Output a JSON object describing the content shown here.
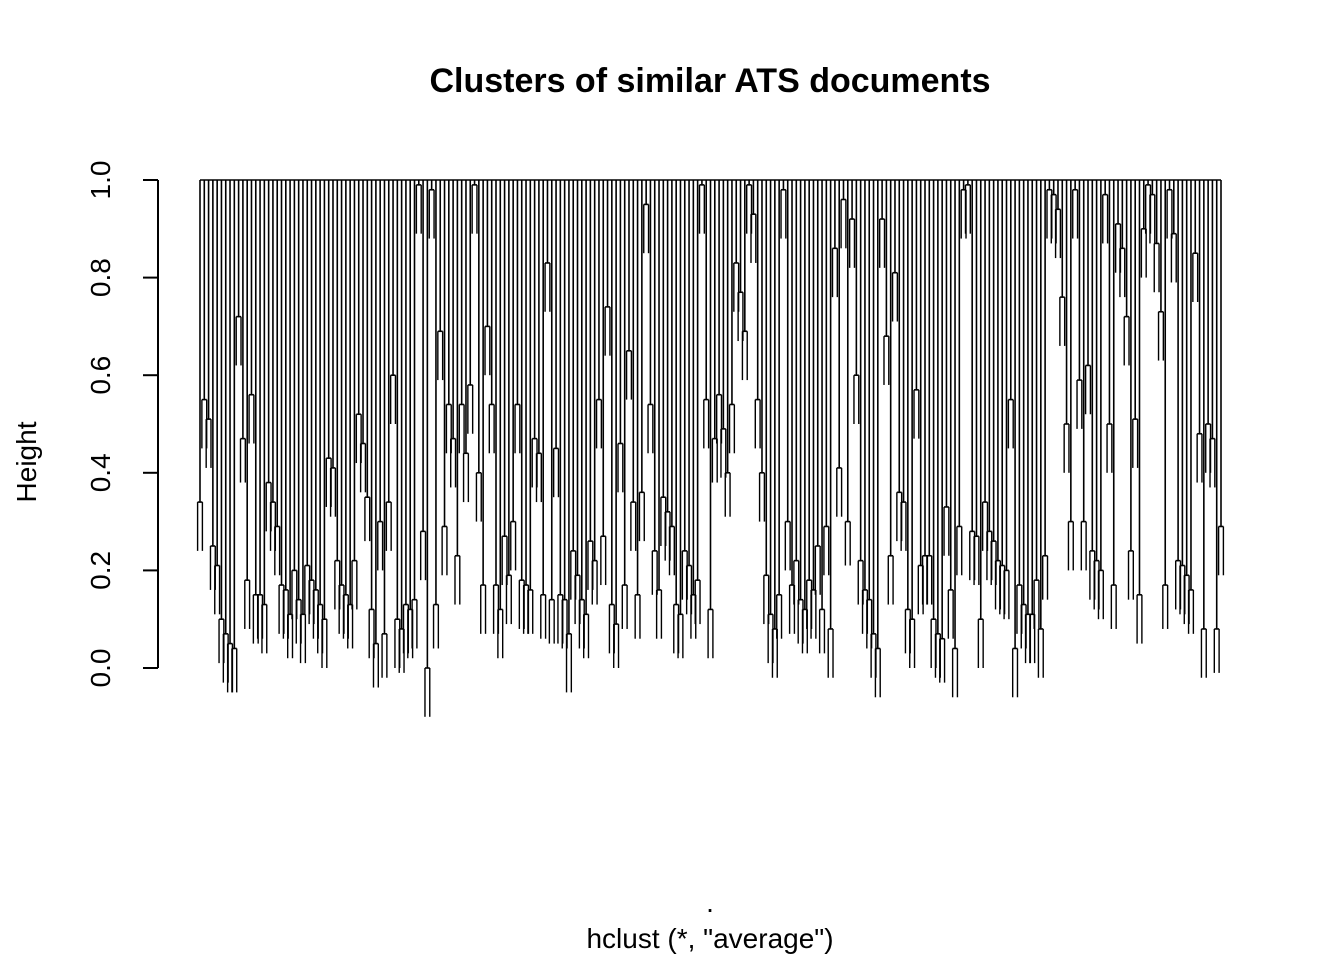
{
  "chart_data": {
    "type": "dendrogram",
    "title": "Clusters of similar ATS documents",
    "ylabel": "Height",
    "xlabel": ".",
    "sub": "hclust (*, \"average\")",
    "ylim": [
      0,
      1
    ],
    "yticks": [
      "0.0",
      "0.2",
      "0.4",
      "0.6",
      "0.8",
      "1.0"
    ],
    "n_leaves": 198,
    "clusters": [
      {
        "width": 5,
        "pairs": [
          [
            0.34,
            0.24
          ],
          [
            0.55,
            0.45
          ],
          [
            0.51,
            0.41
          ],
          [
            0.25,
            0.16
          ],
          [
            0.21,
            0.11
          ]
        ]
      },
      {
        "width": 4,
        "pairs": [
          [
            0.1,
            0.01
          ],
          [
            0.07,
            -0.03
          ],
          [
            0.05,
            -0.05
          ],
          [
            0.04,
            -0.05
          ]
        ]
      },
      {
        "width": 3,
        "pairs": [
          [
            0.72,
            0.62
          ],
          [
            0.47,
            0.38
          ],
          [
            0.18,
            0.08
          ]
        ]
      },
      {
        "width": 4,
        "pairs": [
          [
            0.56,
            0.46
          ],
          [
            0.15,
            0.05
          ],
          [
            0.15,
            0.06
          ],
          [
            0.13,
            0.03
          ]
        ]
      },
      {
        "width": 5,
        "pairs": [
          [
            0.38,
            0.28
          ],
          [
            0.34,
            0.24
          ],
          [
            0.29,
            0.19
          ],
          [
            0.17,
            0.07
          ],
          [
            0.16,
            0.06
          ]
        ]
      },
      {
        "width": 4,
        "pairs": [
          [
            0.11,
            0.02
          ],
          [
            0.2,
            0.1
          ],
          [
            0.14,
            0.05
          ],
          [
            0.11,
            0.01
          ]
        ]
      },
      {
        "width": 5,
        "pairs": [
          [
            0.21,
            0.11
          ],
          [
            0.18,
            0.09
          ],
          [
            0.16,
            0.06
          ],
          [
            0.13,
            0.03
          ],
          [
            0.1,
            0.0
          ]
        ]
      },
      {
        "width": 6,
        "pairs": [
          [
            0.43,
            0.33
          ],
          [
            0.41,
            0.31
          ],
          [
            0.22,
            0.12
          ],
          [
            0.17,
            0.07
          ],
          [
            0.15,
            0.06
          ],
          [
            0.13,
            0.04
          ]
        ]
      },
      {
        "width": 5,
        "pairs": [
          [
            0.22,
            0.12
          ],
          [
            0.52,
            0.42
          ],
          [
            0.46,
            0.36
          ],
          [
            0.35,
            0.26
          ],
          [
            0.12,
            0.02
          ]
        ]
      },
      {
        "width": 4,
        "pairs": [
          [
            0.05,
            -0.04
          ],
          [
            0.3,
            0.2
          ],
          [
            0.07,
            -0.02
          ],
          [
            0.34,
            0.24
          ]
        ]
      },
      {
        "width": 3,
        "pairs": [
          [
            0.6,
            0.5
          ],
          [
            0.1,
            0.0
          ],
          [
            0.08,
            -0.01
          ]
        ]
      },
      {
        "width": 6,
        "pairs": [
          [
            0.13,
            0.03
          ],
          [
            0.12,
            0.02
          ],
          [
            0.14,
            0.04
          ],
          [
            0.99,
            0.89
          ],
          [
            0.28,
            0.18
          ],
          [
            0.0,
            -0.1
          ]
        ]
      },
      {
        "width": 3,
        "pairs": [
          [
            0.98,
            0.88
          ],
          [
            0.13,
            0.04
          ],
          [
            0.69,
            0.59
          ]
        ]
      },
      {
        "width": 4,
        "pairs": [
          [
            0.29,
            0.19
          ],
          [
            0.54,
            0.44
          ],
          [
            0.47,
            0.37
          ],
          [
            0.23,
            0.13
          ]
        ]
      },
      {
        "width": 4,
        "pairs": [
          [
            0.54,
            0.44
          ],
          [
            0.44,
            0.34
          ],
          [
            0.58,
            0.48
          ],
          [
            0.99,
            0.89
          ]
        ]
      },
      {
        "width": 3,
        "pairs": [
          [
            0.4,
            0.3
          ],
          [
            0.17,
            0.07
          ],
          [
            0.7,
            0.6
          ]
        ]
      },
      {
        "width": 4,
        "pairs": [
          [
            0.54,
            0.44
          ],
          [
            0.17,
            0.07
          ],
          [
            0.12,
            0.02
          ],
          [
            0.27,
            0.17
          ]
        ]
      },
      {
        "width": 3,
        "pairs": [
          [
            0.19,
            0.09
          ],
          [
            0.3,
            0.2
          ],
          [
            0.54,
            0.44
          ]
        ]
      },
      {
        "width": 4,
        "pairs": [
          [
            0.18,
            0.08
          ],
          [
            0.17,
            0.07
          ],
          [
            0.16,
            0.07
          ],
          [
            0.47,
            0.37
          ]
        ]
      },
      {
        "width": 3,
        "pairs": [
          [
            0.44,
            0.34
          ],
          [
            0.15,
            0.06
          ],
          [
            0.83,
            0.73
          ]
        ]
      },
      {
        "width": 3,
        "pairs": [
          [
            0.14,
            0.05
          ],
          [
            0.45,
            0.35
          ],
          [
            0.15,
            0.05
          ]
        ]
      },
      {
        "width": 4,
        "pairs": [
          [
            0.14,
            0.04
          ],
          [
            0.07,
            -0.05
          ],
          [
            0.24,
            0.14
          ],
          [
            0.19,
            0.09
          ]
        ]
      },
      {
        "width": 4,
        "pairs": [
          [
            0.14,
            0.04
          ],
          [
            0.11,
            0.02
          ],
          [
            0.26,
            0.16
          ],
          [
            0.22,
            0.13
          ]
        ]
      },
      {
        "width": 4,
        "pairs": [
          [
            0.55,
            0.45
          ],
          [
            0.27,
            0.17
          ],
          [
            0.74,
            0.64
          ],
          [
            0.13,
            0.03
          ]
        ]
      },
      {
        "width": 3,
        "pairs": [
          [
            0.09,
            0.0
          ],
          [
            0.46,
            0.36
          ],
          [
            0.17,
            0.08
          ]
        ]
      },
      {
        "width": 4,
        "pairs": [
          [
            0.65,
            0.55
          ],
          [
            0.34,
            0.24
          ],
          [
            0.15,
            0.06
          ],
          [
            0.36,
            0.26
          ]
        ]
      },
      {
        "width": 3,
        "pairs": [
          [
            0.95,
            0.85
          ],
          [
            0.54,
            0.44
          ],
          [
            0.24,
            0.15
          ]
        ]
      },
      {
        "width": 4,
        "pairs": [
          [
            0.16,
            0.06
          ],
          [
            0.35,
            0.25
          ],
          [
            0.32,
            0.22
          ],
          [
            0.29,
            0.19
          ]
        ]
      },
      {
        "width": 4,
        "pairs": [
          [
            0.13,
            0.03
          ],
          [
            0.11,
            0.02
          ],
          [
            0.24,
            0.14
          ],
          [
            0.21,
            0.11
          ]
        ]
      },
      {
        "width": 4,
        "pairs": [
          [
            0.15,
            0.06
          ],
          [
            0.18,
            0.09
          ],
          [
            0.99,
            0.89
          ],
          [
            0.55,
            0.45
          ]
        ]
      },
      {
        "width": 3,
        "pairs": [
          [
            0.12,
            0.02
          ],
          [
            0.47,
            0.38
          ],
          [
            0.56,
            0.46
          ]
        ]
      },
      {
        "width": 3,
        "pairs": [
          [
            0.49,
            0.39
          ],
          [
            0.4,
            0.31
          ],
          [
            0.54,
            0.44
          ]
        ]
      },
      {
        "width": 4,
        "pairs": [
          [
            0.83,
            0.73
          ],
          [
            0.77,
            0.67
          ],
          [
            0.69,
            0.59
          ],
          [
            0.99,
            0.89
          ]
        ]
      },
      {
        "width": 3,
        "pairs": [
          [
            0.93,
            0.83
          ],
          [
            0.55,
            0.45
          ],
          [
            0.4,
            0.3
          ]
        ]
      },
      {
        "width": 3,
        "pairs": [
          [
            0.19,
            0.09
          ],
          [
            0.11,
            0.01
          ],
          [
            0.08,
            -0.02
          ]
        ]
      },
      {
        "width": 3,
        "pairs": [
          [
            0.15,
            0.06
          ],
          [
            0.98,
            0.88
          ],
          [
            0.3,
            0.2
          ]
        ]
      },
      {
        "width": 4,
        "pairs": [
          [
            0.17,
            0.07
          ],
          [
            0.22,
            0.13
          ],
          [
            0.14,
            0.05
          ],
          [
            0.12,
            0.03
          ]
        ]
      },
      {
        "width": 4,
        "pairs": [
          [
            0.18,
            0.08
          ],
          [
            0.16,
            0.06
          ],
          [
            0.25,
            0.15
          ],
          [
            0.12,
            0.03
          ]
        ]
      },
      {
        "width": 3,
        "pairs": [
          [
            0.29,
            0.19
          ],
          [
            0.08,
            -0.02
          ],
          [
            0.86,
            0.76
          ]
        ]
      },
      {
        "width": 4,
        "pairs": [
          [
            0.41,
            0.31
          ],
          [
            0.96,
            0.86
          ],
          [
            0.3,
            0.21
          ],
          [
            0.92,
            0.82
          ]
        ]
      },
      {
        "width": 4,
        "pairs": [
          [
            0.6,
            0.5
          ],
          [
            0.22,
            0.13
          ],
          [
            0.16,
            0.07
          ],
          [
            0.14,
            0.04
          ]
        ]
      },
      {
        "width": 3,
        "pairs": [
          [
            0.07,
            -0.02
          ],
          [
            0.04,
            -0.06
          ],
          [
            0.92,
            0.82
          ]
        ]
      },
      {
        "width": 4,
        "pairs": [
          [
            0.68,
            0.58
          ],
          [
            0.23,
            0.13
          ],
          [
            0.81,
            0.71
          ],
          [
            0.36,
            0.26
          ]
        ]
      },
      {
        "width": 4,
        "pairs": [
          [
            0.34,
            0.24
          ],
          [
            0.12,
            0.03
          ],
          [
            0.1,
            0.0
          ],
          [
            0.57,
            0.47
          ]
        ]
      },
      {
        "width": 4,
        "pairs": [
          [
            0.21,
            0.11
          ],
          [
            0.23,
            0.13
          ],
          [
            0.23,
            0.13
          ],
          [
            0.1,
            0.0
          ]
        ]
      },
      {
        "width": 4,
        "pairs": [
          [
            0.07,
            -0.02
          ],
          [
            0.06,
            -0.03
          ],
          [
            0.33,
            0.23
          ],
          [
            0.16,
            0.06
          ]
        ]
      },
      {
        "width": 4,
        "pairs": [
          [
            0.04,
            -0.06
          ],
          [
            0.29,
            0.19
          ],
          [
            0.98,
            0.88
          ],
          [
            0.99,
            0.89
          ]
        ]
      },
      {
        "width": 4,
        "pairs": [
          [
            0.28,
            0.18
          ],
          [
            0.27,
            0.17
          ],
          [
            0.1,
            0.0
          ],
          [
            0.34,
            0.24
          ]
        ]
      },
      {
        "width": 4,
        "pairs": [
          [
            0.28,
            0.18
          ],
          [
            0.26,
            0.17
          ],
          [
            0.22,
            0.12
          ],
          [
            0.21,
            0.11
          ]
        ]
      },
      {
        "width": 3,
        "pairs": [
          [
            0.2,
            0.1
          ],
          [
            0.55,
            0.45
          ],
          [
            0.04,
            -0.06
          ]
        ]
      },
      {
        "width": 4,
        "pairs": [
          [
            0.17,
            0.07
          ],
          [
            0.13,
            0.04
          ],
          [
            0.11,
            0.01
          ],
          [
            0.11,
            0.01
          ]
        ]
      },
      {
        "width": 4,
        "pairs": [
          [
            0.18,
            0.08
          ],
          [
            0.08,
            -0.02
          ],
          [
            0.23,
            0.14
          ],
          [
            0.98,
            0.88
          ]
        ]
      },
      {
        "width": 4,
        "pairs": [
          [
            0.97,
            0.87
          ],
          [
            0.94,
            0.84
          ],
          [
            0.76,
            0.66
          ],
          [
            0.5,
            0.4
          ]
        ]
      },
      {
        "width": 4,
        "pairs": [
          [
            0.3,
            0.2
          ],
          [
            0.98,
            0.88
          ],
          [
            0.59,
            0.49
          ],
          [
            0.3,
            0.2
          ]
        ]
      },
      {
        "width": 4,
        "pairs": [
          [
            0.62,
            0.52
          ],
          [
            0.24,
            0.14
          ],
          [
            0.22,
            0.12
          ],
          [
            0.2,
            0.1
          ]
        ]
      },
      {
        "width": 4,
        "pairs": [
          [
            0.97,
            0.87
          ],
          [
            0.5,
            0.4
          ],
          [
            0.17,
            0.08
          ],
          [
            0.91,
            0.81
          ]
        ]
      },
      {
        "width": 4,
        "pairs": [
          [
            0.86,
            0.76
          ],
          [
            0.72,
            0.62
          ],
          [
            0.24,
            0.14
          ],
          [
            0.51,
            0.41
          ]
        ]
      },
      {
        "width": 4,
        "pairs": [
          [
            0.15,
            0.05
          ],
          [
            0.9,
            0.8
          ],
          [
            0.99,
            0.89
          ],
          [
            0.97,
            0.87
          ]
        ]
      },
      {
        "width": 4,
        "pairs": [
          [
            0.87,
            0.77
          ],
          [
            0.73,
            0.63
          ],
          [
            0.17,
            0.08
          ],
          [
            0.98,
            0.88
          ]
        ]
      },
      {
        "width": 5,
        "pairs": [
          [
            0.89,
            0.79
          ],
          [
            0.22,
            0.12
          ],
          [
            0.21,
            0.11
          ],
          [
            0.19,
            0.09
          ],
          [
            0.16,
            0.07
          ]
        ]
      },
      {
        "width": 4,
        "pairs": [
          [
            0.85,
            0.75
          ],
          [
            0.48,
            0.38
          ],
          [
            0.08,
            -0.02
          ],
          [
            0.5,
            0.4
          ]
        ]
      },
      {
        "width": 3,
        "pairs": [
          [
            0.47,
            0.37
          ],
          [
            0.08,
            -0.01
          ],
          [
            0.29,
            0.19
          ]
        ]
      }
    ]
  }
}
